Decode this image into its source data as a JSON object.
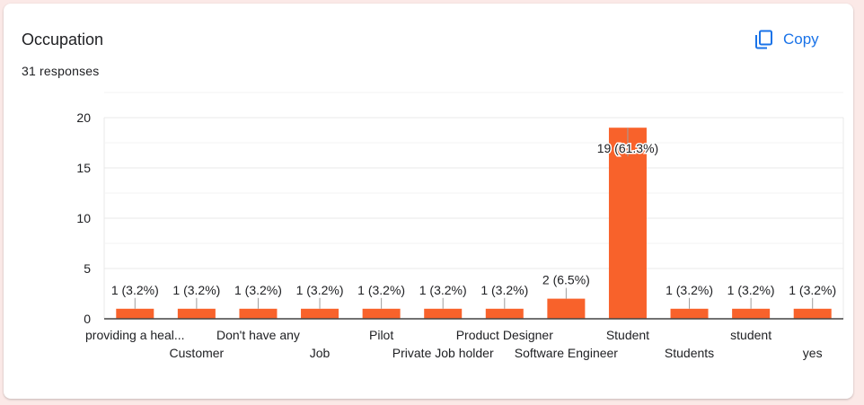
{
  "card": {
    "title": "Occupation",
    "subtitle": "31 responses",
    "copy_label": "Copy"
  },
  "colors": {
    "bar": "#f8622b",
    "accent": "#1a73e8",
    "grid": "#e8e8e8",
    "axis": "#444444",
    "text": "#202124"
  },
  "chart_data": {
    "type": "bar",
    "title": "",
    "xlabel": "",
    "ylabel": "",
    "ylim": [
      0,
      20
    ],
    "yticks": [
      0,
      5,
      10,
      15,
      20
    ],
    "grid": true,
    "categories": [
      "providing a heal...",
      "Customer",
      "Don't have any",
      "Job",
      "Pilot",
      "Private Job holder",
      "Product Designer",
      "Software Engineer",
      "Student",
      "Students",
      "student",
      "yes"
    ],
    "values": [
      1,
      1,
      1,
      1,
      1,
      1,
      1,
      2,
      19,
      1,
      1,
      1
    ],
    "data_labels": [
      "1 (3.2%)",
      "1 (3.2%)",
      "1 (3.2%)",
      "1 (3.2%)",
      "1 (3.2%)",
      "1 (3.2%)",
      "1 (3.2%)",
      "2 (6.5%)",
      "19 (61.3%)",
      "1 (3.2%)",
      "1 (3.2%)",
      "1 (3.2%)"
    ]
  }
}
